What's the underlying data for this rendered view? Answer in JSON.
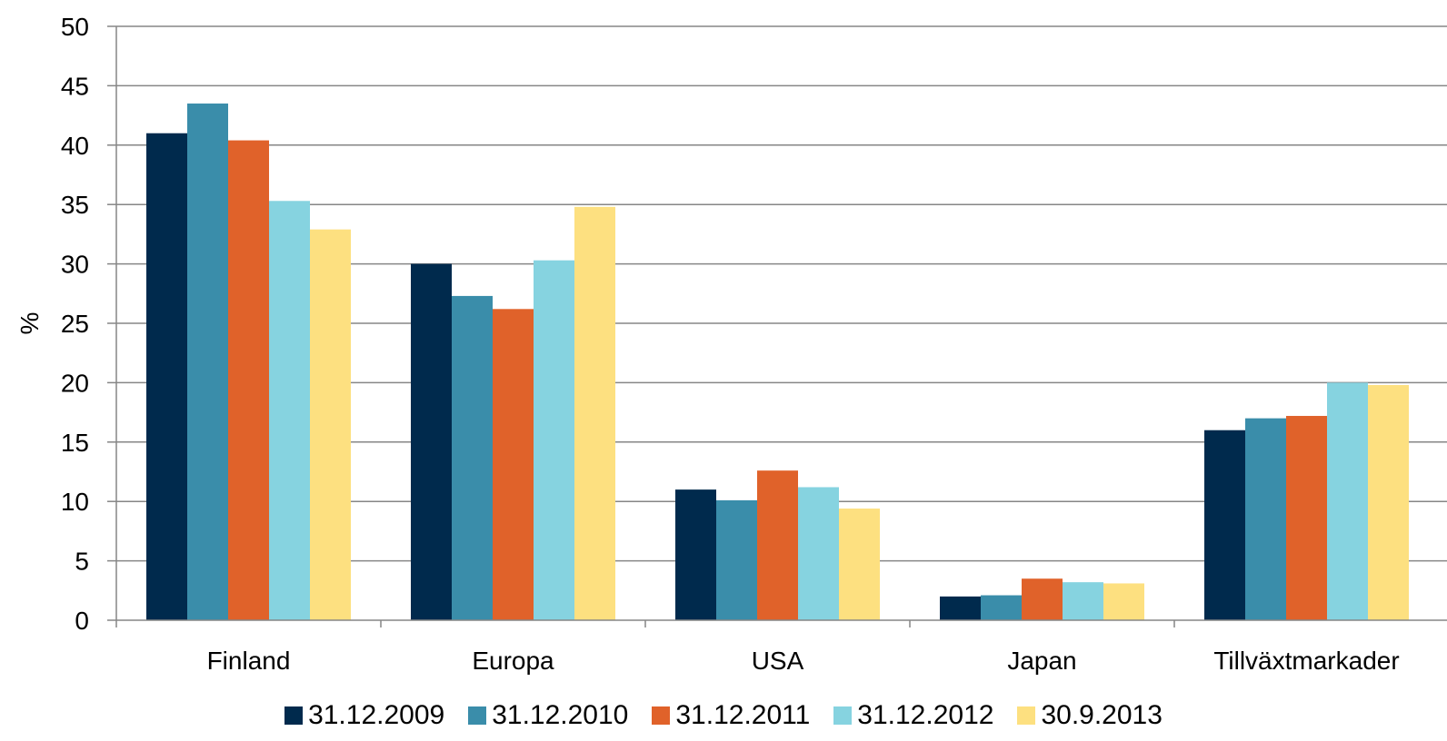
{
  "chart_data": {
    "type": "bar",
    "title": "",
    "xlabel": "",
    "ylabel": "%",
    "ylim": [
      0,
      50
    ],
    "yticks": [
      0,
      5,
      10,
      15,
      20,
      25,
      30,
      35,
      40,
      45,
      50
    ],
    "grid": true,
    "legend_position": "bottom",
    "categories": [
      "Finland",
      "Europa",
      "USA",
      "Japan",
      "Tillväxtmarkader"
    ],
    "series": [
      {
        "name": "31.12.2009",
        "color": "#002a4d",
        "values": [
          41.0,
          30.0,
          11.0,
          2.0,
          16.0
        ]
      },
      {
        "name": "31.12.2010",
        "color": "#3a8daa",
        "values": [
          43.5,
          27.3,
          10.1,
          2.1,
          17.0
        ]
      },
      {
        "name": "31.12.2011",
        "color": "#e0622a",
        "values": [
          40.4,
          26.2,
          12.6,
          3.5,
          17.2
        ]
      },
      {
        "name": "31.12.2012",
        "color": "#86d3e0",
        "values": [
          35.3,
          30.3,
          11.2,
          3.2,
          20.0
        ]
      },
      {
        "name": "30.9.2013",
        "color": "#fde080",
        "values": [
          32.9,
          34.8,
          9.4,
          3.1,
          19.8
        ]
      }
    ]
  }
}
